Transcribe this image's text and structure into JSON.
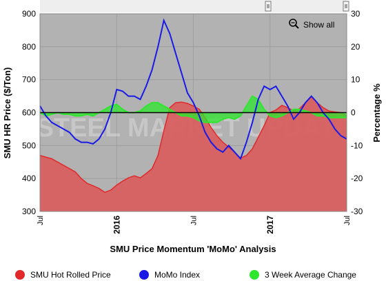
{
  "chart_data": {
    "type": "area",
    "title": "SMU Price Momentum 'MoMo' Analysis",
    "watermark": "STEEL MARKET UPDATE",
    "y_left": {
      "label": "SMU HR Price ($/Ton)",
      "lim": [
        300,
        900
      ],
      "ticks": [
        300,
        400,
        500,
        600,
        700,
        800,
        900
      ]
    },
    "y_right": {
      "label": "Percentage %",
      "lim": [
        -30,
        30
      ],
      "ticks": [
        -30,
        -20,
        -10,
        0,
        10,
        20,
        30
      ]
    },
    "x_ticks": [
      {
        "label": "Jul",
        "x": 0,
        "bold": false
      },
      {
        "label": "2016",
        "x": 26,
        "bold": true
      },
      {
        "label": "Jul",
        "x": 52,
        "bold": false
      },
      {
        "label": "2017",
        "x": 78,
        "bold": true
      },
      {
        "label": "Jul",
        "x": 104,
        "bold": false
      }
    ],
    "x_domain": [
      0,
      104
    ],
    "zero_line_pct": 0,
    "show_all_label": "Show all",
    "colors": {
      "price": "#e0282a",
      "price_area": "#d96060",
      "momo": "#1a1ae6",
      "three_week": "#2ee62e",
      "plot_bg": "#b2b2b2"
    },
    "legend_position": "bottom",
    "series": [
      {
        "name": "SMU Hot Rolled Price",
        "axis": "left",
        "style": "area",
        "x": [
          0,
          2,
          4,
          6,
          8,
          10,
          12,
          14,
          16,
          18,
          20,
          22,
          24,
          26,
          28,
          30,
          32,
          34,
          36,
          38,
          40,
          42,
          44,
          46,
          48,
          50,
          52,
          54,
          56,
          58,
          60,
          62,
          64,
          66,
          68,
          70,
          72,
          74,
          76,
          78,
          80,
          82,
          84,
          86,
          88,
          90,
          92,
          94,
          96,
          98,
          100,
          102,
          104
        ],
        "values": [
          470,
          465,
          460,
          450,
          440,
          430,
          420,
          400,
          385,
          378,
          370,
          358,
          365,
          380,
          392,
          402,
          408,
          402,
          415,
          430,
          470,
          545,
          615,
          630,
          632,
          628,
          620,
          610,
          585,
          555,
          530,
          510,
          495,
          480,
          462,
          470,
          490,
          525,
          560,
          600,
          608,
          622,
          615,
          605,
          612,
          630,
          648,
          630,
          615,
          605,
          602,
          600,
          590
        ]
      },
      {
        "name": "MoMo Index",
        "axis": "right",
        "style": "line",
        "x": [
          0,
          2,
          4,
          6,
          8,
          10,
          12,
          14,
          16,
          18,
          20,
          22,
          24,
          26,
          28,
          30,
          32,
          34,
          36,
          38,
          40,
          42,
          44,
          46,
          48,
          50,
          52,
          54,
          56,
          58,
          60,
          62,
          64,
          66,
          68,
          70,
          72,
          74,
          76,
          78,
          80,
          82,
          84,
          86,
          88,
          90,
          92,
          94,
          96,
          98,
          100,
          102,
          104
        ],
        "values": [
          2,
          -1,
          -3,
          -4,
          -5,
          -6,
          -8,
          -9,
          -9,
          -9.5,
          -8,
          -5,
          0,
          7,
          6.5,
          5,
          5,
          4,
          8,
          13,
          20,
          28,
          24,
          18,
          12,
          6,
          3,
          -1,
          -6,
          -9,
          -11,
          -12,
          -10,
          -12,
          -14,
          -9,
          -3,
          4,
          8,
          7,
          8,
          5,
          2,
          -2,
          0,
          3,
          5,
          3,
          0,
          -2,
          -5,
          -7,
          -8
        ]
      },
      {
        "name": "3 Week Average Change",
        "axis": "right",
        "style": "area",
        "x": [
          0,
          2,
          4,
          6,
          8,
          10,
          12,
          14,
          16,
          18,
          20,
          22,
          24,
          26,
          28,
          30,
          32,
          34,
          36,
          38,
          40,
          42,
          44,
          46,
          48,
          50,
          52,
          54,
          56,
          58,
          60,
          62,
          64,
          66,
          68,
          70,
          72,
          74,
          76,
          78,
          80,
          82,
          84,
          86,
          88,
          90,
          92,
          94,
          96,
          98,
          100,
          102,
          104
        ],
        "values": [
          0,
          -1,
          -0.5,
          0,
          -0.5,
          -0.5,
          -1,
          -1,
          -0.5,
          -1,
          0,
          1,
          2,
          2.5,
          1,
          0,
          0,
          0.5,
          2,
          3,
          3,
          2,
          1,
          0,
          -1,
          -1,
          -1.5,
          -2.5,
          -3,
          -3,
          -3,
          -2,
          -1.5,
          -2,
          -1,
          2,
          5,
          4,
          1,
          -1,
          -1.5,
          -1,
          0,
          1,
          1,
          0.5,
          0,
          -1,
          -1,
          -1.5,
          -1.5,
          -1.5,
          -1.5
        ]
      }
    ]
  }
}
